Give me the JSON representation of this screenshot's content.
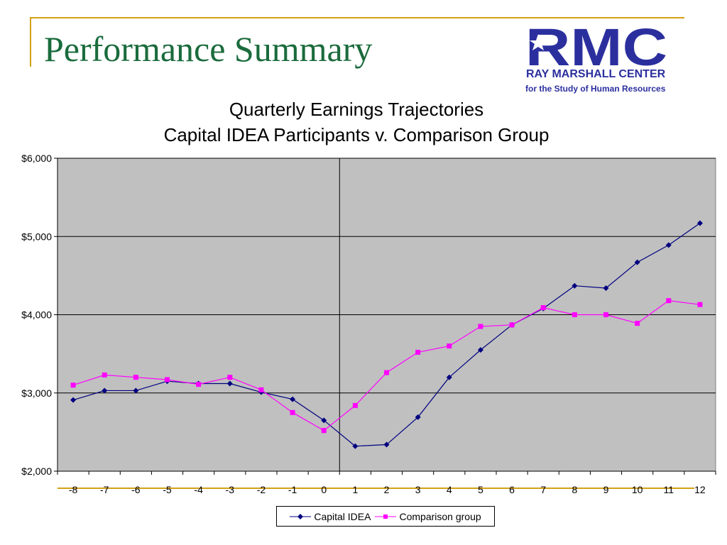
{
  "slide": {
    "title": "Performance Summary",
    "logo": {
      "letters": "RMC",
      "line1": "RAY MARSHALL CENTER",
      "line2": "for the Study of Human Resources",
      "color": "#2b2f9e"
    }
  },
  "chart_data": {
    "type": "line",
    "title": "Quarterly Earnings Trajectories",
    "subtitle": "Capital IDEA Participants v. Comparison Group",
    "xlabel": "",
    "ylabel": "",
    "categories": [
      "-8",
      "-7",
      "-6",
      "-5",
      "-4",
      "-3",
      "-2",
      "-1",
      "0",
      "1",
      "2",
      "3",
      "4",
      "5",
      "6",
      "7",
      "8",
      "9",
      "10",
      "11",
      "12"
    ],
    "ylim": [
      2000,
      6000
    ],
    "yticks": [
      2000,
      3000,
      4000,
      5000,
      6000
    ],
    "ytick_labels": [
      "$2,000",
      "$3,000",
      "$4,000",
      "$5,000",
      "$6,000"
    ],
    "grid": true,
    "plot_background": "#c0c0c0",
    "vertical_reference_at": "0",
    "legend_position": "bottom",
    "series": [
      {
        "name": "Capital IDEA",
        "color": "#000080",
        "marker": "diamond",
        "values": [
          2910,
          3030,
          3030,
          3150,
          3120,
          3120,
          3010,
          2920,
          2650,
          2320,
          2340,
          2690,
          3200,
          3550,
          3870,
          4080,
          4370,
          4340,
          4670,
          4890,
          5170
        ]
      },
      {
        "name": "Comparison group",
        "color": "#ff00ff",
        "marker": "square",
        "values": [
          3100,
          3230,
          3200,
          3170,
          3110,
          3200,
          3040,
          2750,
          2520,
          2840,
          3260,
          3520,
          3600,
          3850,
          3870,
          4090,
          4000,
          4000,
          3890,
          4180,
          4130
        ]
      }
    ]
  }
}
